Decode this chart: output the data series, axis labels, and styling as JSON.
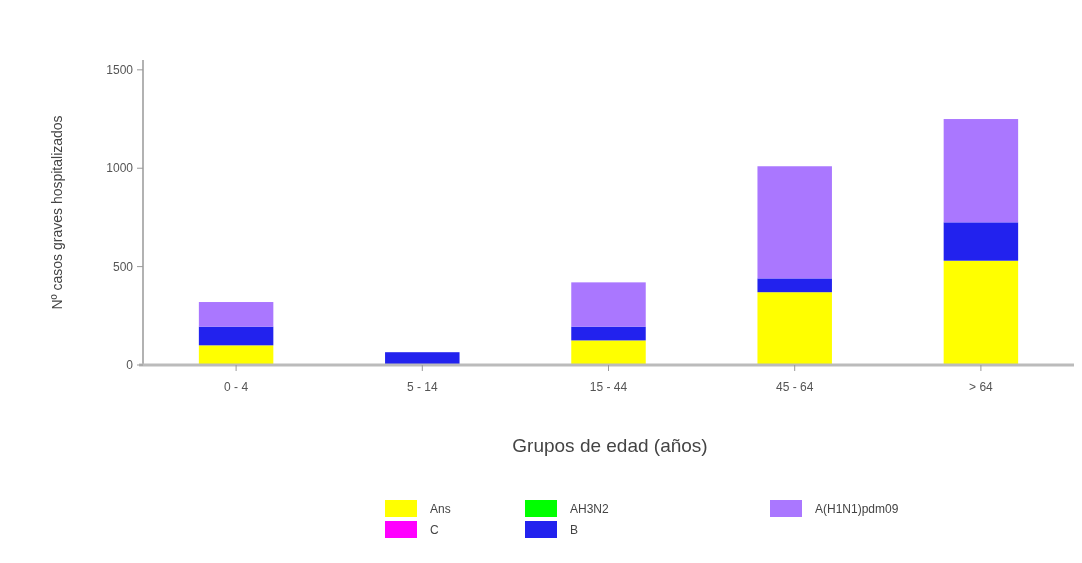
{
  "chart_data": {
    "type": "bar",
    "xlabel": "Grupos de edad (años)",
    "ylabel": "Nº casos graves hospitalizados",
    "categories": [
      "0 - 4",
      "5 - 14",
      "15 - 44",
      "45 - 64",
      "> 64"
    ],
    "stacked": true,
    "series": [
      {
        "name": "Ans",
        "color": "#ffff00",
        "values": [
          100,
          null,
          125,
          370,
          530
        ]
      },
      {
        "name": "C",
        "color": "#ff00ff",
        "values": [
          0,
          0,
          0,
          0,
          0
        ]
      },
      {
        "name": "AH3N2",
        "color": "#00ff00",
        "values": [
          0,
          0,
          0,
          0,
          0
        ]
      },
      {
        "name": "B",
        "color": "#2222ee",
        "values": [
          95,
          65,
          70,
          70,
          195
        ]
      },
      {
        "name": "A(H1N1)pdm09",
        "color": "#aa77ff",
        "values": [
          125,
          0,
          225,
          570,
          525
        ]
      }
    ],
    "ylim": [
      0,
      1550
    ],
    "yticks": [
      0,
      500,
      1000,
      1500
    ],
    "legend": "bottom",
    "grid": false
  }
}
